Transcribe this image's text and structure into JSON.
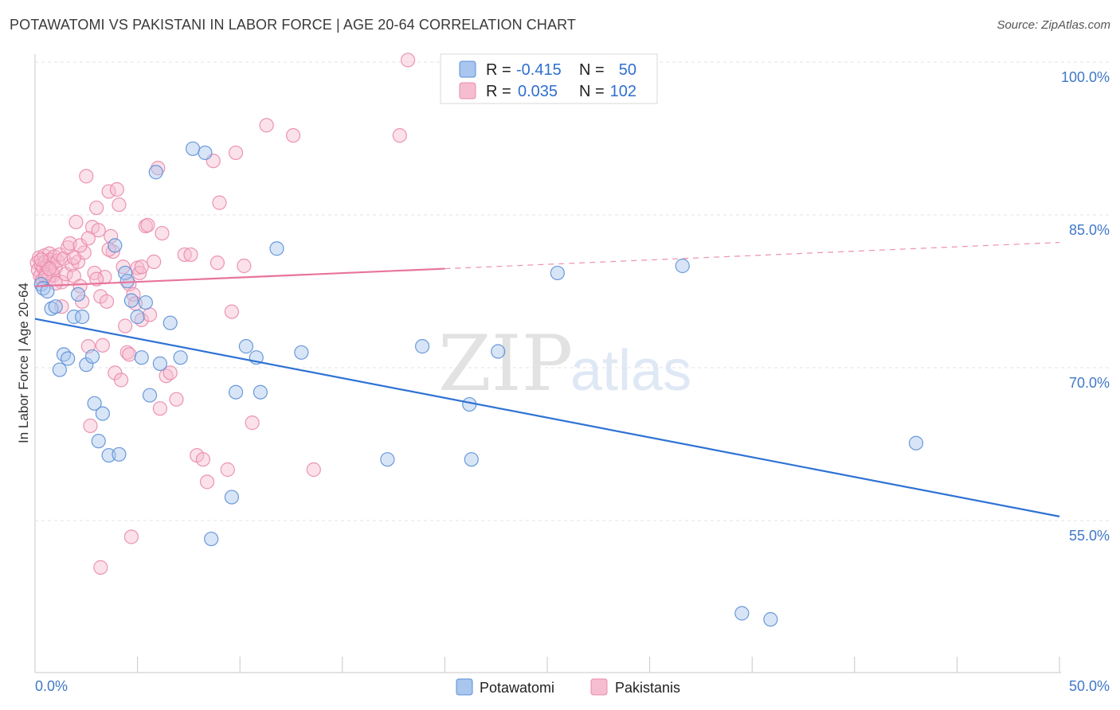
{
  "title": "POTAWATOMI VS PAKISTANI IN LABOR FORCE | AGE 20-64 CORRELATION CHART",
  "source": "Source: ZipAtlas.com",
  "watermark": {
    "zip": "ZIP",
    "atlas": "atlas"
  },
  "colors": {
    "blue_fill": "#a8c6ee",
    "blue_stroke": "#5b8fd6",
    "blue_line": "#2f72d4",
    "pink_fill": "#f6bdd0",
    "pink_stroke": "#e98aab",
    "pink_line": "#e8749c",
    "grid": "#e3e3e3",
    "axis_label": "#3f78c8"
  },
  "legend": {
    "rows": [
      {
        "r_label": "R =",
        "r_value": "-0.415",
        "n_label": "N =",
        "n_value": "50"
      },
      {
        "r_label": "R =",
        "r_value": "0.035",
        "n_label": "N =",
        "n_value": "102"
      }
    ]
  },
  "bottom_legend": [
    "Potawatomi",
    "Pakistanis"
  ],
  "chart_data": {
    "type": "scatter",
    "title": "POTAWATOMI VS PAKISTANI IN LABOR FORCE | AGE 20-64 CORRELATION CHART",
    "xlabel": "",
    "ylabel": "In Labor Force | Age 20-64",
    "xlim": [
      0,
      50
    ],
    "ylim": [
      40,
      102
    ],
    "x_tick_labels": [
      "0.0%",
      "50.0%"
    ],
    "y_ticks": [
      55,
      70,
      85,
      100
    ],
    "y_tick_labels": [
      "55.0%",
      "70.0%",
      "85.0%",
      "100.0%"
    ],
    "series": [
      {
        "name": "Potawatomi",
        "r": -0.415,
        "n": 50,
        "trend": {
          "x": [
            0,
            50
          ],
          "y": [
            74.8,
            55.4
          ],
          "dashed_from": null
        },
        "points": [
          [
            0.3,
            78.2
          ],
          [
            0.4,
            77.8
          ],
          [
            0.6,
            77.5
          ],
          [
            0.8,
            75.8
          ],
          [
            1.0,
            76.0
          ],
          [
            1.2,
            69.8
          ],
          [
            1.4,
            71.3
          ],
          [
            1.6,
            70.9
          ],
          [
            1.9,
            75.0
          ],
          [
            2.1,
            77.2
          ],
          [
            2.3,
            75.0
          ],
          [
            2.5,
            70.3
          ],
          [
            2.8,
            71.1
          ],
          [
            2.9,
            66.5
          ],
          [
            3.1,
            62.8
          ],
          [
            3.3,
            65.5
          ],
          [
            3.6,
            61.4
          ],
          [
            3.9,
            82.0
          ],
          [
            4.1,
            61.5
          ],
          [
            4.4,
            79.3
          ],
          [
            4.7,
            76.6
          ],
          [
            5.0,
            75.0
          ],
          [
            5.2,
            71.0
          ],
          [
            5.4,
            76.4
          ],
          [
            5.6,
            67.3
          ],
          [
            5.9,
            89.2
          ],
          [
            6.1,
            70.4
          ],
          [
            6.6,
            74.4
          ],
          [
            7.1,
            71.0
          ],
          [
            7.7,
            91.5
          ],
          [
            8.3,
            91.1
          ],
          [
            8.6,
            53.2
          ],
          [
            9.6,
            57.3
          ],
          [
            9.8,
            67.6
          ],
          [
            10.3,
            72.1
          ],
          [
            10.8,
            71.0
          ],
          [
            11.0,
            67.6
          ],
          [
            11.8,
            81.7
          ],
          [
            13.0,
            71.5
          ],
          [
            17.2,
            61.0
          ],
          [
            18.9,
            72.1
          ],
          [
            21.2,
            66.4
          ],
          [
            21.3,
            61.0
          ],
          [
            22.6,
            71.6
          ],
          [
            25.5,
            79.3
          ],
          [
            31.6,
            80.0
          ],
          [
            34.5,
            45.9
          ],
          [
            35.9,
            45.3
          ],
          [
            43.0,
            62.6
          ],
          [
            4.5,
            78.5
          ]
        ]
      },
      {
        "name": "Pakistanis",
        "r": 0.035,
        "n": 102,
        "trend": {
          "x": [
            0,
            50
          ],
          "y": [
            78.0,
            82.3
          ],
          "dashed_from": 20
        },
        "points": [
          [
            0.1,
            80.3
          ],
          [
            0.15,
            79.6
          ],
          [
            0.2,
            80.8
          ],
          [
            0.25,
            79.0
          ],
          [
            0.3,
            80.1
          ],
          [
            0.35,
            78.6
          ],
          [
            0.4,
            79.8
          ],
          [
            0.45,
            81.0
          ],
          [
            0.5,
            80.4
          ],
          [
            0.55,
            79.3
          ],
          [
            0.6,
            80.0
          ],
          [
            0.65,
            78.8
          ],
          [
            0.7,
            81.2
          ],
          [
            0.75,
            80.6
          ],
          [
            0.8,
            79.5
          ],
          [
            0.85,
            80.2
          ],
          [
            0.9,
            79.1
          ],
          [
            0.95,
            80.9
          ],
          [
            1.0,
            79.8
          ],
          [
            1.1,
            80.5
          ],
          [
            1.2,
            81.1
          ],
          [
            1.3,
            78.4
          ],
          [
            1.4,
            80.7
          ],
          [
            1.5,
            79.2
          ],
          [
            1.6,
            81.8
          ],
          [
            1.7,
            82.2
          ],
          [
            1.8,
            80.1
          ],
          [
            1.9,
            79.0
          ],
          [
            2.0,
            84.3
          ],
          [
            2.1,
            80.4
          ],
          [
            2.2,
            78.0
          ],
          [
            2.3,
            76.5
          ],
          [
            2.4,
            81.3
          ],
          [
            2.5,
            88.8
          ],
          [
            2.6,
            72.1
          ],
          [
            2.7,
            64.3
          ],
          [
            2.8,
            83.8
          ],
          [
            2.9,
            79.3
          ],
          [
            3.0,
            85.7
          ],
          [
            3.1,
            83.5
          ],
          [
            3.2,
            77.0
          ],
          [
            3.3,
            72.2
          ],
          [
            3.4,
            78.9
          ],
          [
            3.5,
            76.5
          ],
          [
            3.6,
            87.3
          ],
          [
            3.7,
            82.9
          ],
          [
            3.8,
            81.4
          ],
          [
            3.9,
            69.5
          ],
          [
            4.0,
            87.5
          ],
          [
            4.1,
            86.0
          ],
          [
            4.2,
            68.8
          ],
          [
            4.3,
            79.9
          ],
          [
            4.4,
            74.1
          ],
          [
            4.5,
            71.5
          ],
          [
            4.6,
            78.2
          ],
          [
            4.7,
            53.4
          ],
          [
            4.8,
            77.2
          ],
          [
            4.9,
            76.3
          ],
          [
            5.0,
            79.8
          ],
          [
            5.1,
            79.3
          ],
          [
            5.2,
            74.7
          ],
          [
            5.4,
            83.9
          ],
          [
            5.5,
            84.0
          ],
          [
            5.6,
            75.2
          ],
          [
            5.8,
            80.4
          ],
          [
            6.0,
            89.6
          ],
          [
            6.2,
            83.2
          ],
          [
            6.4,
            69.2
          ],
          [
            6.6,
            69.5
          ],
          [
            6.9,
            66.9
          ],
          [
            7.3,
            81.1
          ],
          [
            7.6,
            81.1
          ],
          [
            7.9,
            61.4
          ],
          [
            8.2,
            61.0
          ],
          [
            8.4,
            58.8
          ],
          [
            8.7,
            90.3
          ],
          [
            8.9,
            80.3
          ],
          [
            9.0,
            86.2
          ],
          [
            9.4,
            60.0
          ],
          [
            9.6,
            75.5
          ],
          [
            9.8,
            91.1
          ],
          [
            10.2,
            80.0
          ],
          [
            10.6,
            64.6
          ],
          [
            11.3,
            93.8
          ],
          [
            12.6,
            92.8
          ],
          [
            13.6,
            60.0
          ],
          [
            17.8,
            92.8
          ],
          [
            18.2,
            100.2
          ],
          [
            3.2,
            50.4
          ],
          [
            6.1,
            66.0
          ],
          [
            1.3,
            76.0
          ],
          [
            2.2,
            82.0
          ],
          [
            0.5,
            78.9
          ],
          [
            3.6,
            81.6
          ],
          [
            4.6,
            71.3
          ],
          [
            5.2,
            79.9
          ],
          [
            0.3,
            80.6
          ],
          [
            1.0,
            78.3
          ],
          [
            2.6,
            82.7
          ],
          [
            3.0,
            78.7
          ],
          [
            0.7,
            79.7
          ],
          [
            1.9,
            80.8
          ]
        ]
      }
    ]
  }
}
